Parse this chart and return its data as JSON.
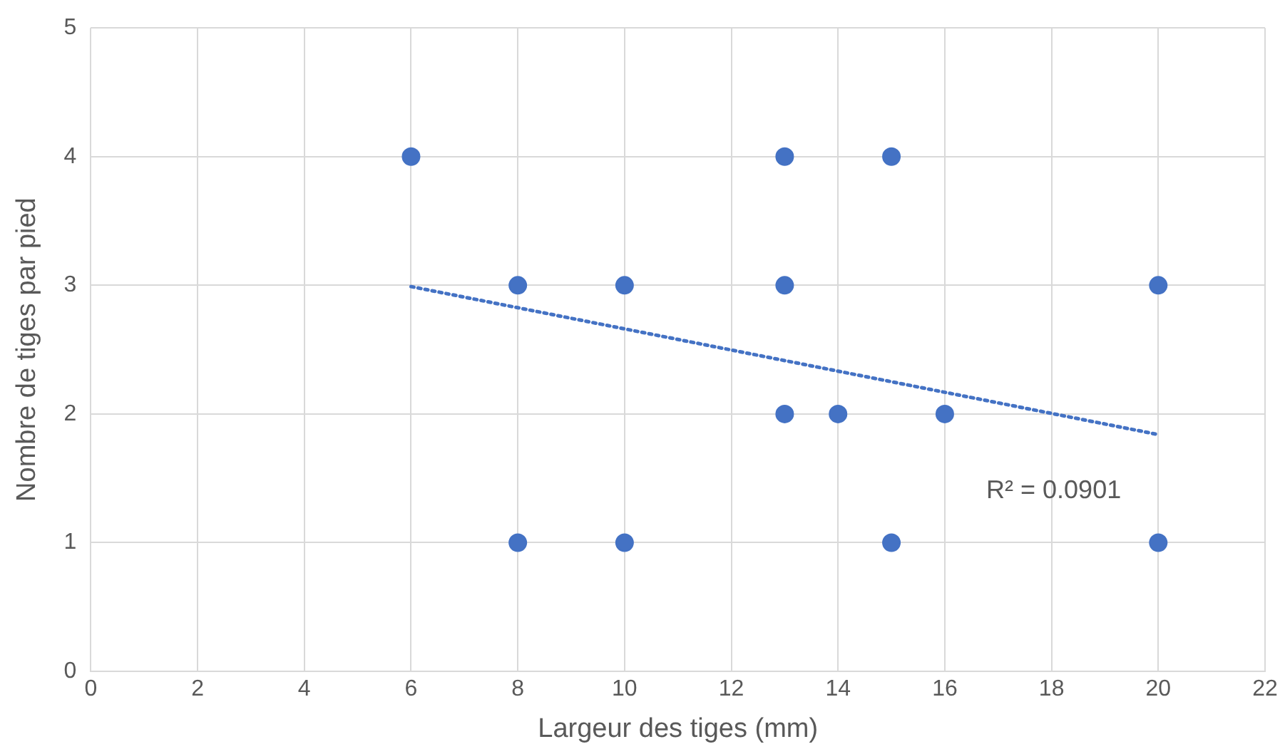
{
  "chart_data": {
    "type": "scatter",
    "xlabel": "Largeur des tiges (mm)",
    "ylabel": "Nombre de tiges par pied",
    "xlim": [
      0,
      22
    ],
    "xticks": [
      0,
      2,
      4,
      6,
      8,
      10,
      12,
      14,
      16,
      18,
      20,
      22
    ],
    "ylim": [
      0,
      5
    ],
    "yticks": [
      0,
      1,
      2,
      3,
      4,
      5
    ],
    "grid": true,
    "legend": false,
    "marker": "circle",
    "series": [
      {
        "color": "#4472c4",
        "x": [
          6,
          8,
          8,
          10,
          10,
          13,
          13,
          13,
          14,
          15,
          15,
          16,
          20,
          20
        ],
        "values": [
          4,
          3,
          1,
          3,
          1,
          4,
          3,
          2,
          2,
          4,
          1,
          2,
          3,
          1
        ]
      },
      {
        "type": "line",
        "color": "#4472c4",
        "line_style": "dotted",
        "marker": "none",
        "x": [
          6,
          20
        ],
        "values": [
          2.99,
          1.84
        ]
      }
    ],
    "annotations": [
      "R² = 0.0901"
    ]
  }
}
